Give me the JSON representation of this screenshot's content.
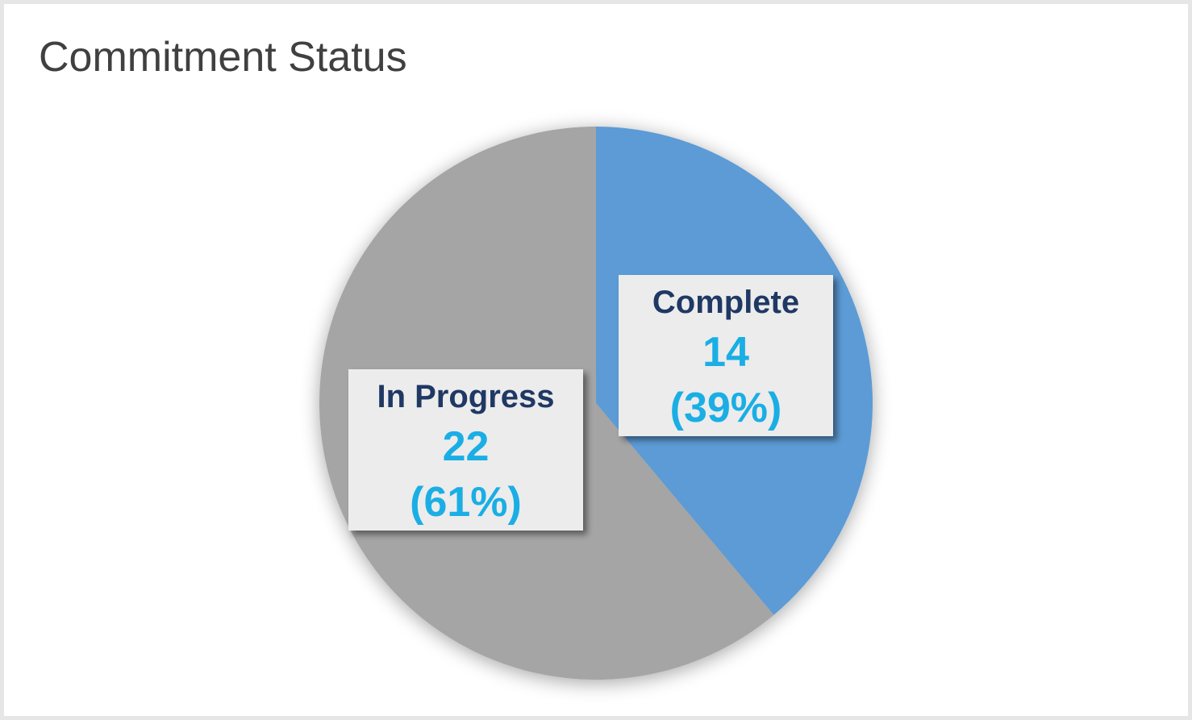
{
  "chart_data": {
    "type": "pie",
    "title": "Commitment Status",
    "start_angle_deg": 0,
    "direction": "clockwise",
    "slices": [
      {
        "label": "Complete",
        "value": 14,
        "percent_label": "(39%)",
        "color": "#5b9bd5"
      },
      {
        "label": "In Progress",
        "value": 22,
        "percent_label": "(61%)",
        "color": "#a5a5a5"
      }
    ]
  }
}
